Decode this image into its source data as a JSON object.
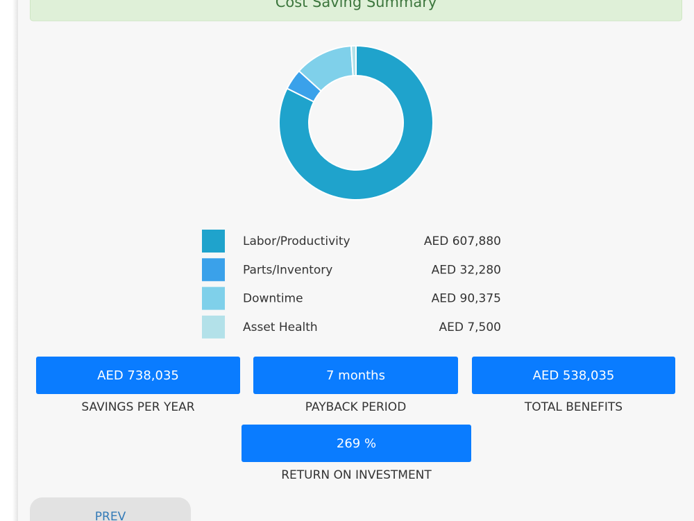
{
  "header": {
    "title": "Cost Saving Summary"
  },
  "chart_data": {
    "type": "pie",
    "categories": [
      "Labor/Productivity",
      "Parts/Inventory",
      "Downtime",
      "Asset Health"
    ],
    "values": [
      607880,
      32280,
      90375,
      7500
    ],
    "value_labels": [
      "AED 607,880",
      "AED 32,280",
      "AED 90,375",
      "AED 7,500"
    ],
    "colors": [
      "#1fa3cc",
      "#3aa1ea",
      "#7fd0ea",
      "#b3e1e9"
    ]
  },
  "metrics": [
    {
      "value": "AED 738,035",
      "label": "SAVINGS PER YEAR"
    },
    {
      "value": "7 months",
      "label": "PAYBACK PERIOD"
    },
    {
      "value": "AED 538,035",
      "label": "TOTAL BENEFITS"
    },
    {
      "value": "269 %",
      "label": "RETURN ON INVESTMENT"
    }
  ],
  "nav": {
    "prev": "PREV"
  }
}
